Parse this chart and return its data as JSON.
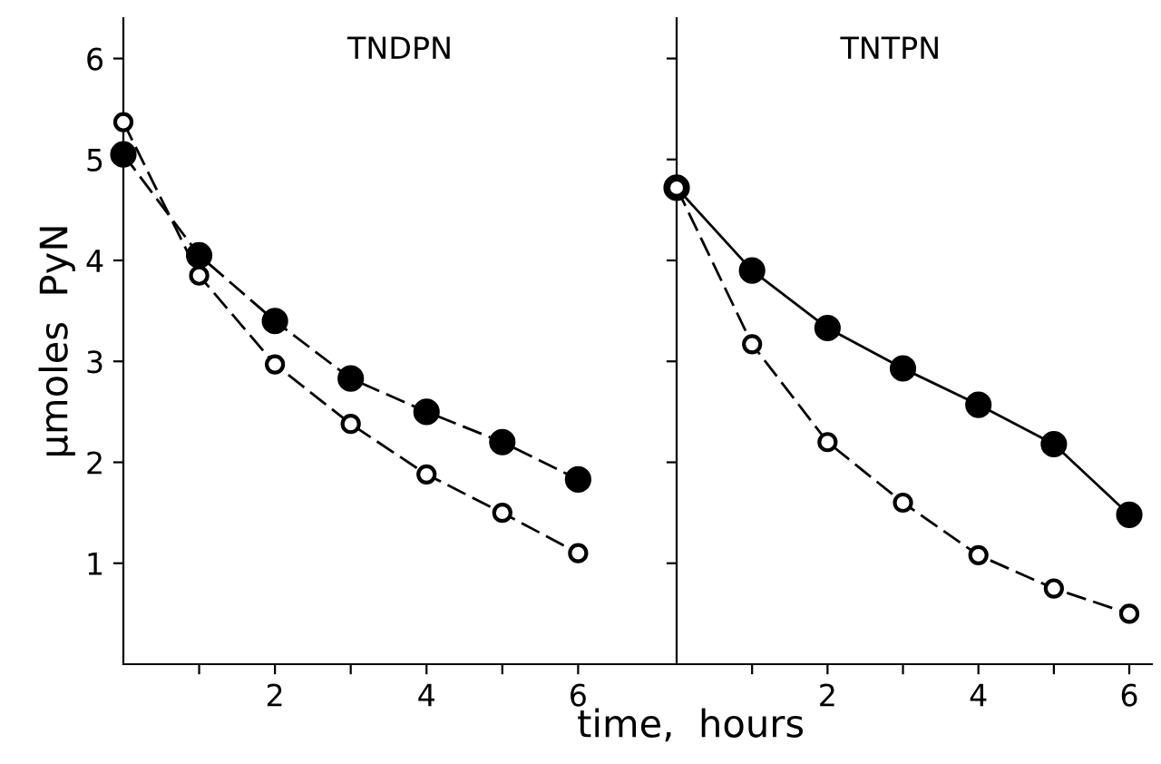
{
  "chart_data": [
    {
      "type": "line",
      "title": "TNDPN",
      "ylabel": "μmoles  PyN",
      "xlabel": "time,  hours",
      "x": [
        0,
        1,
        2,
        3,
        4,
        5,
        6
      ],
      "series": [
        {
          "color": "#000000",
          "values": [
            5.05,
            4.05,
            3.4,
            2.83,
            2.5,
            2.2,
            1.83
          ],
          "line_style": "dashed"
        },
        {
          "color": "#000000",
          "values": [
            5.37,
            3.85,
            2.97,
            2.38,
            1.88,
            1.5,
            1.1
          ],
          "line_style": "dashed"
        }
      ],
      "xlim": [
        0,
        7.3
      ],
      "ylim": [
        0,
        6.4
      ],
      "xticks": [
        {
          "value": 1,
          "label": null
        },
        2,
        {
          "value": 3,
          "label": null
        },
        4,
        {
          "value": 5,
          "label": null
        },
        6
      ],
      "yticks": [
        1,
        2,
        3,
        4,
        5,
        6
      ],
      "marker": "circle",
      "grid": false,
      "legend": false
    },
    {
      "type": "line",
      "title": "TNTPN",
      "x": [
        0,
        1,
        2,
        3,
        4,
        5,
        6
      ],
      "series": [
        {
          "color": "#000000",
          "values": [
            4.72,
            3.9,
            3.33,
            2.93,
            2.57,
            2.18,
            1.48
          ],
          "line_style": "solid"
        },
        {
          "color": "#000000",
          "values": [
            4.72,
            3.17,
            2.2,
            1.6,
            1.08,
            0.75,
            0.5
          ],
          "line_style": "dashed"
        }
      ],
      "xlim": [
        0,
        6.3
      ],
      "ylim": [
        0,
        6.4
      ],
      "xticks": [
        {
          "value": 1,
          "label": null
        },
        2,
        {
          "value": 3,
          "label": null
        },
        4,
        {
          "value": 5,
          "label": null
        },
        6
      ],
      "yticks": [
        {
          "value": 1,
          "label": null
        },
        {
          "value": 2,
          "label": null
        },
        {
          "value": 3,
          "label": null
        },
        {
          "value": 4,
          "label": null
        },
        {
          "value": 5,
          "label": null
        },
        {
          "value": 6,
          "label": null
        }
      ],
      "tick_labels": "x",
      "marker": "circle",
      "grid": false,
      "legend": false
    }
  ]
}
